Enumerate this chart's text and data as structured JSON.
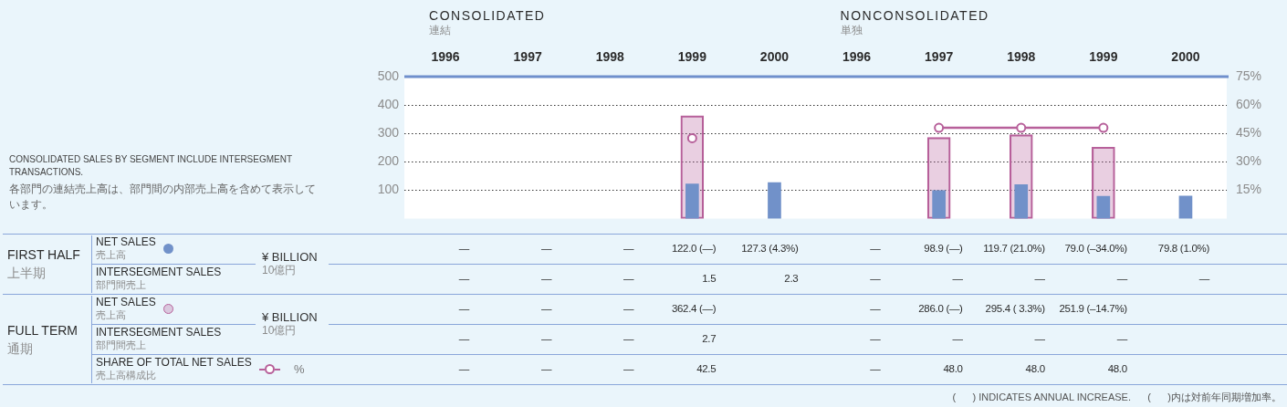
{
  "chart_data": {
    "type": "bar",
    "categories": [
      "1996",
      "1997",
      "1998",
      "1999",
      "2000",
      "1996",
      "1997",
      "1998",
      "1999",
      "2000"
    ],
    "series": [
      {
        "name": "NET SALES\n売上高",
        "color": "#7191c9",
        "values": [
          null,
          null,
          null,
          122.0,
          127.3,
          null,
          98.9,
          119.7,
          79.0,
          79.8
        ],
        "value_labels": [
          "—",
          "—",
          "—",
          "122.0 (—)",
          "127.3 (4.3%)",
          "—",
          "98.9 (—)",
          "119.7 (21.0%)",
          "79.0 (–34.0%)",
          "79.8 (1.0%)"
        ]
      },
      {
        "name": "INTERSEGMENT SALES\n部門間売上",
        "type": "other",
        "values": [
          null,
          null,
          null,
          null,
          null,
          null,
          null,
          null,
          null,
          null
        ],
        "value_labels": [
          "—",
          "—",
          "—",
          "1.5",
          "2.3",
          "—",
          "—",
          "—",
          "—",
          "—"
        ]
      },
      {
        "name": "NET SALES\n売上高",
        "color": "#b7609a",
        "values": [
          null,
          null,
          null,
          362.4,
          null,
          null,
          286.0,
          295.4,
          251.9,
          null
        ],
        "value_labels": [
          "—",
          "—",
          "—",
          "362.4 (—)",
          null,
          "—",
          "286.0 (—)",
          "295.4 ( 3.3%)",
          "251.9 (–14.7%)",
          null
        ]
      },
      {
        "name": "INTERSEGMENT SALES\n部門間売上",
        "type": "other",
        "values": [
          null,
          null,
          null,
          null,
          null,
          null,
          null,
          null,
          null,
          null
        ],
        "value_labels": [
          "—",
          "—",
          "—",
          "2.7",
          null,
          "—",
          "—",
          "—",
          "—",
          null
        ]
      },
      {
        "name": "SHARE OF TOTAL NET SALES\n売上高構成比",
        "type": "line",
        "axis": "y2",
        "color": "#b7609a",
        "values": [
          null,
          null,
          null,
          42.5,
          null,
          null,
          48.0,
          48.0,
          48.0,
          null
        ],
        "value_labels": [
          "—",
          "—",
          "—",
          "42.5",
          null,
          "—",
          "48.0",
          "48.0",
          "48.0",
          null
        ]
      }
    ],
    "ylim": [
      0,
      500
    ],
    "yticks": [
      100,
      200,
      300,
      400,
      500
    ],
    "y2lim": [
      0,
      75
    ],
    "y2ticks": [
      {
        "value": 15,
        "label": "15%"
      },
      {
        "value": 30,
        "label": "30%"
      },
      {
        "value": 45,
        "label": "45%"
      },
      {
        "value": 60,
        "label": "60%"
      },
      {
        "value": 75,
        "label": "75%"
      }
    ],
    "grid": "y",
    "legend": "bottom left",
    "marker": "circle",
    "annotations": [
      "CONSOLIDATED\n連結",
      "NONCONSOLIDATED\n単独",
      "CONSOLIDATED SALES BY SEGMENT INCLUDE INTERSEGMENT TRANSACTIONS.\n各部門の連結売上高は、部門間の内部売上高を含めて表示しています。",
      "FIRST HALF\n上半期",
      "FULL TERM\n通期",
      "(      ) INDICATES ANNUAL INCREASE.      (      )内は対前年同期増加率。",
      "¥ BILLION\n10億円",
      "¥ BILLION\n10億円",
      "%"
    ]
  }
}
